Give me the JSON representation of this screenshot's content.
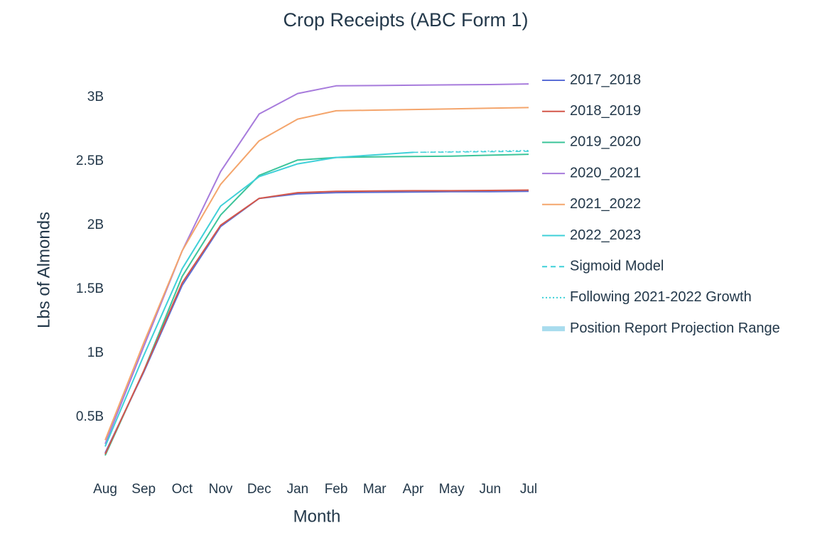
{
  "chart_data": {
    "type": "line",
    "title": "Crop Receipts (ABC Form 1)",
    "x_label": "Month",
    "y_label": "Lbs of Almonds",
    "categories": [
      "Aug",
      "Sep",
      "Oct",
      "Nov",
      "Dec",
      "Jan",
      "Feb",
      "Mar",
      "Apr",
      "May",
      "Jun",
      "Jul"
    ],
    "ylim": [
      150000000,
      3200000000
    ],
    "yticks": [
      {
        "value": 500000000,
        "label": "0.5B"
      },
      {
        "value": 1000000000,
        "label": "1B"
      },
      {
        "value": 1500000000,
        "label": "1.5B"
      },
      {
        "value": 2000000000,
        "label": "2B"
      },
      {
        "value": 2500000000,
        "label": "2.5B"
      },
      {
        "value": 3000000000,
        "label": "3B"
      }
    ],
    "grid": false,
    "legend": "right",
    "series": [
      {
        "name": "2017_2018",
        "color": "#5b6fd6",
        "style": "solid",
        "values": [
          220000000,
          850000000,
          1530000000,
          1990000000,
          2210000000,
          2245000000,
          2255000000,
          2258000000,
          2260000000,
          2262000000,
          2263000000,
          2265000000
        ]
      },
      {
        "name": "2018_2019",
        "color": "#d4574a",
        "style": "solid",
        "values": [
          210000000,
          860000000,
          1550000000,
          2000000000,
          2210000000,
          2255000000,
          2265000000,
          2268000000,
          2270000000,
          2270000000,
          2272000000,
          2275000000
        ]
      },
      {
        "name": "2019_2020",
        "color": "#3cc49a",
        "style": "solid",
        "values": [
          200000000,
          860000000,
          1600000000,
          2080000000,
          2390000000,
          2510000000,
          2530000000,
          2535000000,
          2537000000,
          2540000000,
          2548000000,
          2555000000
        ]
      },
      {
        "name": "2020_2021",
        "color": "#a77bdc",
        "style": "solid",
        "values": [
          290000000,
          1050000000,
          1800000000,
          2420000000,
          2870000000,
          3030000000,
          3090000000,
          3092000000,
          3095000000,
          3098000000,
          3100000000,
          3105000000
        ]
      },
      {
        "name": "2021_2022",
        "color": "#f4a56c",
        "style": "solid",
        "values": [
          320000000,
          1080000000,
          1800000000,
          2320000000,
          2660000000,
          2830000000,
          2895000000,
          2900000000,
          2905000000,
          2910000000,
          2915000000,
          2920000000
        ]
      },
      {
        "name": "2022_2023",
        "color": "#3fd0d8",
        "style": "solid",
        "values": [
          270000000,
          980000000,
          1660000000,
          2150000000,
          2380000000,
          2480000000,
          2530000000,
          2550000000,
          2570000000,
          null,
          null,
          null
        ]
      },
      {
        "name": "Sigmoid Model",
        "color": "#3fd0d8",
        "style": "dash",
        "values": [
          null,
          null,
          null,
          null,
          null,
          null,
          null,
          null,
          2570000000,
          2572000000,
          2575000000,
          2578000000
        ]
      },
      {
        "name": "Following 2021-2022 Growth",
        "color": "#3fd0d8",
        "style": "dot",
        "values": [
          null,
          null,
          null,
          null,
          null,
          null,
          null,
          null,
          2570000000,
          2575000000,
          2580000000,
          2585000000
        ]
      },
      {
        "name": "Position Report Projection Range",
        "color": "#a8dcee",
        "style": "band",
        "values": [
          null,
          null,
          null,
          null,
          null,
          null,
          null,
          null,
          null,
          null,
          null,
          null
        ]
      }
    ]
  }
}
